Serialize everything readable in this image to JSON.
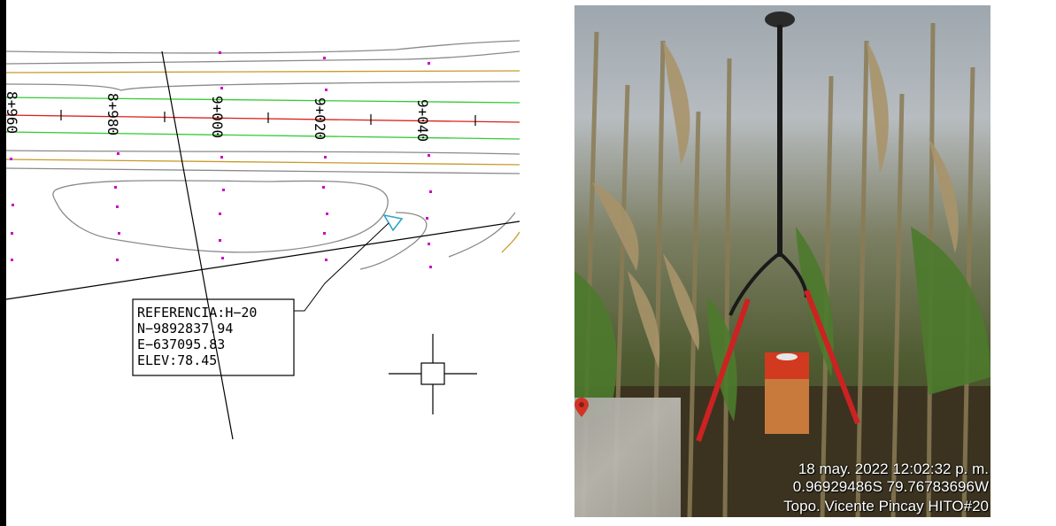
{
  "cad_drawing": {
    "stations": [
      "8+960",
      "8+980",
      "9+000",
      "9+020",
      "9+040"
    ],
    "reference_box": {
      "line1": "REFERENCIA:H−20",
      "line2": "N−9892837.94",
      "line3": "E−637095.83",
      "line4": "ELEV:78.45"
    },
    "colors": {
      "axis": "#d9201c",
      "offset": "#33cc33",
      "border": "#c89a2a",
      "contour": "#8a8a8a",
      "points": "#cc00cc"
    }
  },
  "photo": {
    "stamp": {
      "date": "18 may. 2022 12:02:32 p. m.",
      "coords": "0.96929486S 79.76783696W",
      "author": "Topo. Vicente Pincay  HITO#20"
    },
    "map_icon": "location-pin-icon"
  }
}
